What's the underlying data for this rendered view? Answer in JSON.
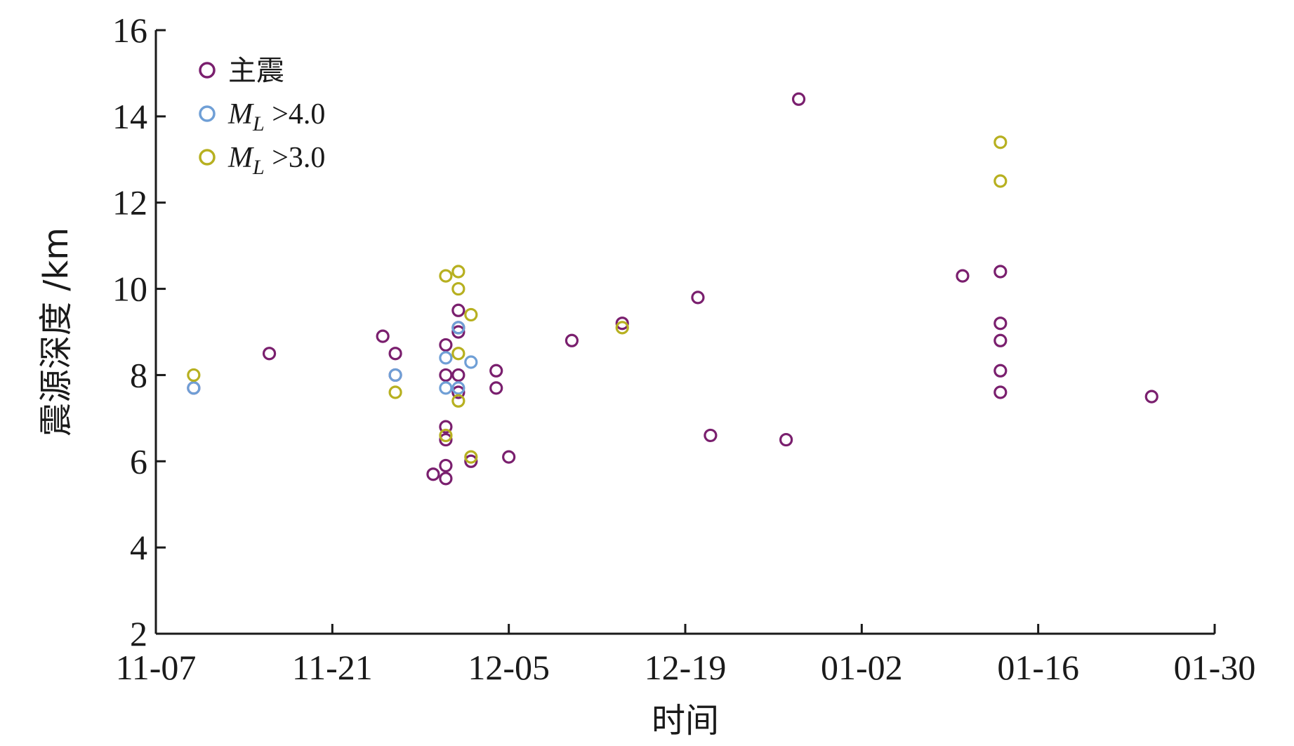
{
  "chart_data": {
    "type": "scatter",
    "xlabel": "时间",
    "ylabel": "震源深度 /km",
    "x_ticks": [
      "11-07",
      "11-21",
      "12-05",
      "12-19",
      "01-02",
      "01-16",
      "01-30"
    ],
    "x_tick_dates": [
      "2022-11-07",
      "2022-11-21",
      "2022-12-05",
      "2022-12-19",
      "2023-01-02",
      "2023-01-16",
      "2023-01-30"
    ],
    "xlim": [
      "2022-11-07",
      "2023-01-30"
    ],
    "ylim": [
      2,
      16
    ],
    "y_ticks": [
      2,
      4,
      6,
      8,
      10,
      12,
      14,
      16
    ],
    "legend_position": "top-left",
    "grid": false,
    "series": [
      {
        "name": "主震",
        "label_prefix": "",
        "label_subscript": "",
        "label_suffix": "主震",
        "color": "#7a1f6e",
        "points": [
          {
            "x": "2022-11-10",
            "y": 7.7
          },
          {
            "x": "2022-11-16",
            "y": 8.5
          },
          {
            "x": "2022-11-25",
            "y": 8.9
          },
          {
            "x": "2022-11-26",
            "y": 8.5
          },
          {
            "x": "2022-11-26",
            "y": 8.0
          },
          {
            "x": "2022-11-29",
            "y": 5.7
          },
          {
            "x": "2022-11-30",
            "y": 8.7
          },
          {
            "x": "2022-11-30",
            "y": 8.0
          },
          {
            "x": "2022-11-30",
            "y": 6.8
          },
          {
            "x": "2022-11-30",
            "y": 6.5
          },
          {
            "x": "2022-11-30",
            "y": 5.9
          },
          {
            "x": "2022-11-30",
            "y": 5.6
          },
          {
            "x": "2022-12-01",
            "y": 9.1
          },
          {
            "x": "2022-12-01",
            "y": 9.5
          },
          {
            "x": "2022-12-01",
            "y": 9.0
          },
          {
            "x": "2022-12-01",
            "y": 8.0
          },
          {
            "x": "2022-12-01",
            "y": 7.6
          },
          {
            "x": "2022-12-02",
            "y": 6.0
          },
          {
            "x": "2022-12-04",
            "y": 8.1
          },
          {
            "x": "2022-12-04",
            "y": 7.7
          },
          {
            "x": "2022-12-05",
            "y": 6.1
          },
          {
            "x": "2022-12-10",
            "y": 8.8
          },
          {
            "x": "2022-12-14",
            "y": 9.2
          },
          {
            "x": "2022-12-20",
            "y": 9.8
          },
          {
            "x": "2022-12-21",
            "y": 6.6
          },
          {
            "x": "2022-12-27",
            "y": 6.5
          },
          {
            "x": "2022-12-28",
            "y": 14.4
          },
          {
            "x": "2023-01-10",
            "y": 10.3
          },
          {
            "x": "2023-01-13",
            "y": 10.4
          },
          {
            "x": "2023-01-13",
            "y": 9.2
          },
          {
            "x": "2023-01-13",
            "y": 8.8
          },
          {
            "x": "2023-01-13",
            "y": 8.1
          },
          {
            "x": "2023-01-13",
            "y": 7.6
          },
          {
            "x": "2023-01-25",
            "y": 7.5
          }
        ]
      },
      {
        "name": "ML >4.0",
        "label_prefix": "M",
        "label_subscript": "L",
        "label_suffix": " >4.0",
        "color": "#6f9fd6",
        "points": [
          {
            "x": "2022-11-10",
            "y": 7.7
          },
          {
            "x": "2022-11-26",
            "y": 8.0
          },
          {
            "x": "2022-11-30",
            "y": 8.4
          },
          {
            "x": "2022-11-30",
            "y": 7.7
          },
          {
            "x": "2022-12-01",
            "y": 9.1
          },
          {
            "x": "2022-12-01",
            "y": 7.7
          },
          {
            "x": "2022-12-02",
            "y": 8.3
          }
        ]
      },
      {
        "name": "ML >3.0",
        "label_prefix": "M",
        "label_subscript": "L",
        "label_suffix": " >3.0",
        "color": "#b7b020",
        "points": [
          {
            "x": "2022-11-10",
            "y": 8.0
          },
          {
            "x": "2022-11-26",
            "y": 7.6
          },
          {
            "x": "2022-11-30",
            "y": 10.3
          },
          {
            "x": "2022-12-01",
            "y": 10.4
          },
          {
            "x": "2022-12-01",
            "y": 10.0
          },
          {
            "x": "2022-12-02",
            "y": 9.4
          },
          {
            "x": "2022-12-01",
            "y": 8.5
          },
          {
            "x": "2022-12-01",
            "y": 7.4
          },
          {
            "x": "2022-11-30",
            "y": 6.6
          },
          {
            "x": "2022-12-02",
            "y": 6.1
          },
          {
            "x": "2022-12-14",
            "y": 9.1
          },
          {
            "x": "2023-01-13",
            "y": 13.4
          },
          {
            "x": "2023-01-13",
            "y": 12.5
          }
        ]
      }
    ]
  }
}
